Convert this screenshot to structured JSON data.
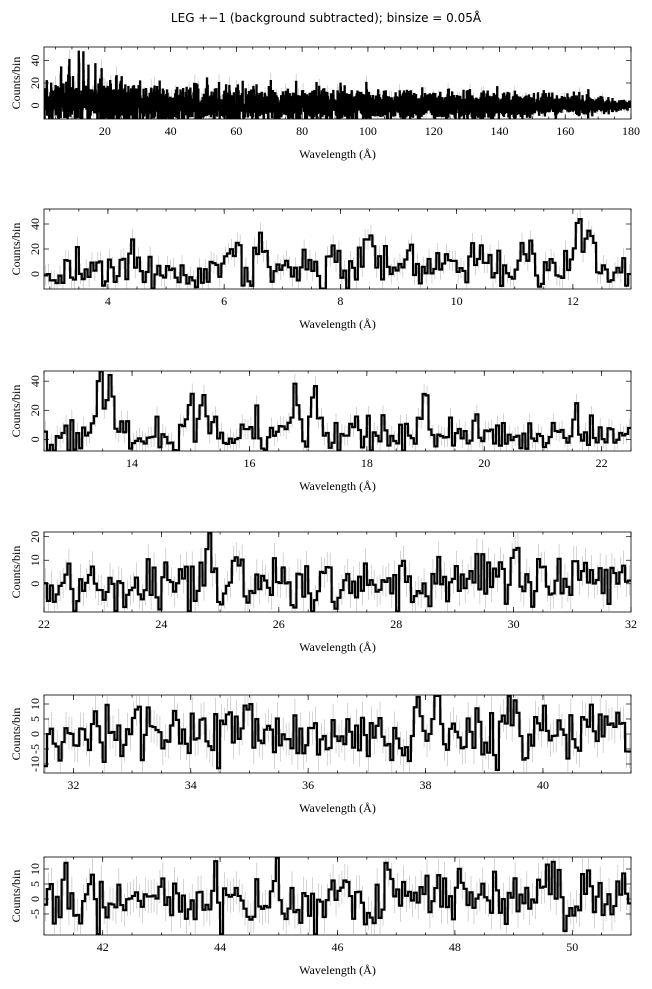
{
  "figure": {
    "title": "LEG +−1 (background subtracted); binsize = 0.05Å"
  },
  "colors": {
    "histogram": "#000000",
    "error_bars": "#b8b8b8",
    "axes": "#000000"
  },
  "chart_data": [
    {
      "type": "line",
      "title": "LEG +−1 (background subtracted); binsize = 0.05Å",
      "xlabel": "Wavelength (Å)",
      "ylabel": "Counts/bin",
      "xlim": [
        1.5,
        180
      ],
      "ylim": [
        -12,
        52
      ],
      "xticks": [
        20,
        40,
        60,
        80,
        100,
        120,
        140,
        160,
        180
      ],
      "yticks": [
        0,
        20,
        40
      ],
      "features": [
        {
          "x": 6.7,
          "y": 32
        },
        {
          "x": 9.2,
          "y": 30
        },
        {
          "x": 12.1,
          "y": 43
        },
        {
          "x": 13.5,
          "y": 40
        },
        {
          "x": 15.0,
          "y": 28
        },
        {
          "x": 17.1,
          "y": 26
        },
        {
          "x": 19.0,
          "y": 24
        },
        {
          "x": 21.6,
          "y": 16
        },
        {
          "x": 24.8,
          "y": 15
        },
        {
          "x": 30.0,
          "y": 14
        }
      ],
      "noise": {
        "start": 9,
        "end": 4,
        "fade_to": 2
      }
    },
    {
      "type": "line",
      "xlabel": "Wavelength (Å)",
      "ylabel": "Counts/bin",
      "xlim": [
        2.9,
        13.0
      ],
      "ylim": [
        -12,
        52
      ],
      "xticks": [
        4,
        6,
        8,
        10,
        12
      ],
      "yticks": [
        0,
        20,
        40
      ],
      "features": [
        {
          "x": 4.4,
          "y": 20
        },
        {
          "x": 6.2,
          "y": 22
        },
        {
          "x": 6.65,
          "y": 32
        },
        {
          "x": 8.45,
          "y": 24
        },
        {
          "x": 9.15,
          "y": 20
        },
        {
          "x": 10.5,
          "y": 16
        },
        {
          "x": 11.3,
          "y": 16
        },
        {
          "x": 12.1,
          "y": 43
        },
        {
          "x": 12.3,
          "y": 28
        }
      ],
      "noise": {
        "start": 8,
        "end": 8
      }
    },
    {
      "type": "line",
      "xlabel": "Wavelength (Å)",
      "ylabel": "Counts/bin",
      "xlim": [
        12.5,
        22.5
      ],
      "ylim": [
        -8,
        47
      ],
      "xticks": [
        14,
        16,
        18,
        20,
        22
      ],
      "yticks": [
        0,
        20,
        40
      ],
      "features": [
        {
          "x": 13.45,
          "y": 40
        },
        {
          "x": 13.65,
          "y": 30
        },
        {
          "x": 15.0,
          "y": 28
        },
        {
          "x": 15.2,
          "y": 20
        },
        {
          "x": 16.8,
          "y": 18
        },
        {
          "x": 17.1,
          "y": 26
        },
        {
          "x": 19.0,
          "y": 24
        },
        {
          "x": 21.6,
          "y": 16
        }
      ],
      "noise": {
        "start": 7,
        "end": 6
      }
    },
    {
      "type": "line",
      "xlabel": "Wavelength (Å)",
      "ylabel": "Counts/bin",
      "xlim": [
        22,
        32
      ],
      "ylim": [
        -12,
        22
      ],
      "xticks": [
        22,
        24,
        26,
        28,
        30,
        32
      ],
      "yticks": [
        0,
        10,
        20
      ],
      "features": [
        {
          "x": 24.8,
          "y": 15
        },
        {
          "x": 25.3,
          "y": 12
        },
        {
          "x": 30.0,
          "y": 14
        },
        {
          "x": 31.1,
          "y": 12
        }
      ],
      "noise": {
        "start": 6,
        "end": 6
      }
    },
    {
      "type": "line",
      "xlabel": "Wavelength (Å)",
      "ylabel": "Counts/bin",
      "xlim": [
        31.5,
        41.5
      ],
      "ylim": [
        -13,
        13
      ],
      "xticks": [
        32,
        34,
        36,
        38,
        40
      ],
      "yticks": [
        -10,
        -5,
        0,
        5,
        10
      ],
      "features": [
        {
          "x": 37.9,
          "y": 9
        },
        {
          "x": 38.2,
          "y": 10
        },
        {
          "x": 39.4,
          "y": 8
        },
        {
          "x": 41.1,
          "y": 9
        }
      ],
      "noise": {
        "start": 5,
        "end": 5
      }
    },
    {
      "type": "line",
      "xlabel": "Wavelength (Å)",
      "ylabel": "Counts/bin",
      "xlim": [
        41,
        51
      ],
      "ylim": [
        -12,
        14
      ],
      "xticks": [
        42,
        44,
        46,
        48,
        50
      ],
      "yticks": [
        -5,
        0,
        5,
        10
      ],
      "features": [
        {
          "x": 45.0,
          "y": 10
        },
        {
          "x": 46.9,
          "y": 10
        },
        {
          "x": 49.6,
          "y": 9
        }
      ],
      "noise": {
        "start": 5,
        "end": 5
      }
    }
  ]
}
